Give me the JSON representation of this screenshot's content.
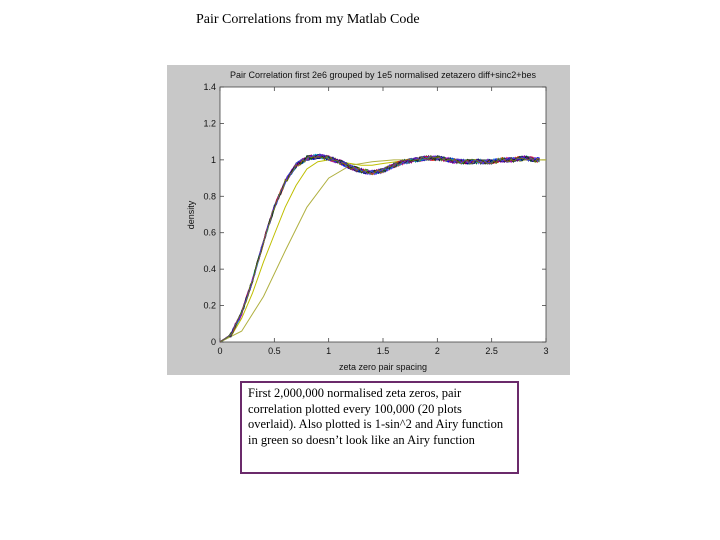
{
  "slide": {
    "title": "Pair Correlations from my Matlab Code",
    "caption": "First 2,000,000 normalised zeta zeros, pair correlation plotted every 100,000 (20 plots overlaid). Also plotted is 1-sin^2 and Airy function in green so doesn’t look like an Airy function"
  },
  "chart_data": {
    "type": "line",
    "title": "Pair Correlation first 2e6 grouped by 1e5 normalised zetazero diff+sinc2+bes",
    "title_superscript": "2",
    "xlabel": "zeta zero pair spacing",
    "ylabel": "density",
    "xlim": [
      0,
      3
    ],
    "ylim": [
      0,
      1.4
    ],
    "xticks": [
      "0",
      "0.5",
      "1",
      "1.5",
      "2",
      "2.5",
      "3"
    ],
    "yticks": [
      "0",
      "0.2",
      "0.4",
      "0.6",
      "0.8",
      "1",
      "1.2",
      "1.4"
    ],
    "grid": false,
    "overlaid_series_count": 20,
    "series_colors": [
      "#0000ff",
      "#008000",
      "#ff0000",
      "#00bfbf",
      "#bf00bf",
      "#000080",
      "#800080",
      "#004000",
      "#4040ff",
      "#808000"
    ],
    "reference_curves": [
      {
        "label": "1-sinc^2",
        "color": "#bfbf00",
        "x": [
          0,
          0.1,
          0.2,
          0.3,
          0.4,
          0.5,
          0.6,
          0.7,
          0.8,
          0.9,
          1.0,
          1.1,
          1.2,
          1.3,
          1.4,
          1.5,
          1.75,
          2.0,
          2.5,
          3.0
        ],
        "y": [
          0,
          0.03,
          0.13,
          0.27,
          0.44,
          0.59,
          0.74,
          0.86,
          0.95,
          0.99,
          1.0,
          0.99,
          0.98,
          0.97,
          0.97,
          0.98,
          1.0,
          1.0,
          1.0,
          1.0
        ]
      },
      {
        "label": "Airy",
        "color": "#b0b040",
        "x": [
          0,
          0.2,
          0.4,
          0.6,
          0.8,
          1.0,
          1.2,
          1.4,
          1.6,
          2.0,
          2.5,
          3.0
        ],
        "y": [
          0,
          0.06,
          0.25,
          0.5,
          0.74,
          0.9,
          0.97,
          0.99,
          1.0,
          1.0,
          1.0,
          1.0
        ]
      }
    ],
    "empirical_mean": {
      "x": [
        0,
        0.1,
        0.2,
        0.3,
        0.4,
        0.5,
        0.6,
        0.7,
        0.8,
        0.9,
        1.0,
        1.1,
        1.2,
        1.3,
        1.4,
        1.5,
        1.6,
        1.7,
        1.8,
        1.9,
        2.0,
        2.1,
        2.2,
        2.3,
        2.4,
        2.5,
        2.6,
        2.7,
        2.8,
        2.9,
        3.0
      ],
      "y": [
        0,
        0.04,
        0.16,
        0.34,
        0.55,
        0.74,
        0.88,
        0.97,
        1.01,
        1.02,
        1.01,
        0.99,
        0.96,
        0.94,
        0.93,
        0.94,
        0.97,
        0.99,
        1.0,
        1.01,
        1.01,
        1.0,
        0.99,
        0.99,
        0.99,
        0.99,
        1.0,
        1.0,
        1.01,
        1.0,
        1.0
      ]
    }
  }
}
